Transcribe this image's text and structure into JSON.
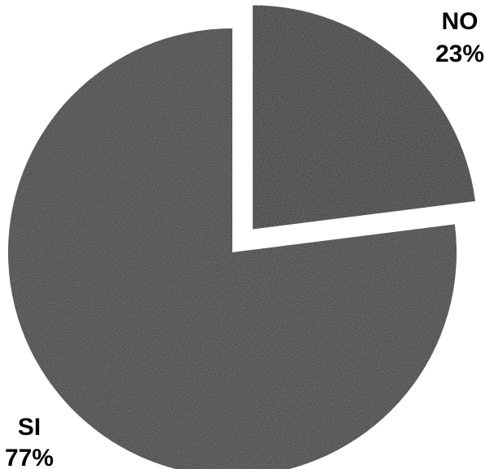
{
  "chart_data": {
    "type": "pie",
    "title": "",
    "slices": [
      {
        "label": "NO",
        "value": 23,
        "value_label": "23%",
        "color": "#141414",
        "exploded": true
      },
      {
        "label": "SI",
        "value": 77,
        "value_label": "77%",
        "color": "#262626",
        "exploded": false
      }
    ],
    "legend": "none",
    "background": "#ffffff"
  }
}
